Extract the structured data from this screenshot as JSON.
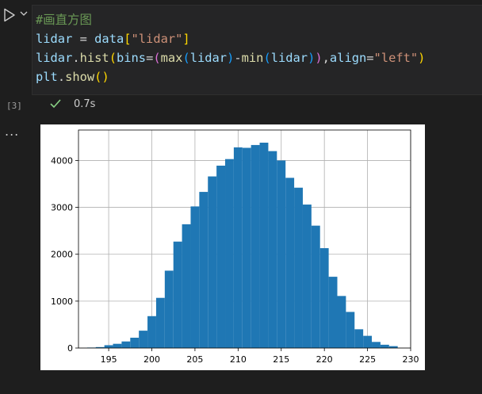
{
  "cell": {
    "code_lines": [
      [
        {
          "t": "#画直方图",
          "c": "comment"
        }
      ],
      [
        {
          "t": "lidar",
          "c": "var"
        },
        {
          "t": " = ",
          "c": ""
        },
        {
          "t": "data",
          "c": "var"
        },
        {
          "t": "[",
          "c": "br1"
        },
        {
          "t": "\"lidar\"",
          "c": "str"
        },
        {
          "t": "]",
          "c": "br1"
        }
      ],
      [
        {
          "t": "lidar",
          "c": "var"
        },
        {
          "t": ".",
          "c": ""
        },
        {
          "t": "hist",
          "c": "fn"
        },
        {
          "t": "(",
          "c": "br1"
        },
        {
          "t": "bins",
          "c": "var"
        },
        {
          "t": "=",
          "c": ""
        },
        {
          "t": "(",
          "c": "br2"
        },
        {
          "t": "max",
          "c": "fn"
        },
        {
          "t": "(",
          "c": "br3"
        },
        {
          "t": "lidar",
          "c": "var"
        },
        {
          "t": ")",
          "c": "br3"
        },
        {
          "t": "-",
          "c": ""
        },
        {
          "t": "min",
          "c": "fn"
        },
        {
          "t": "(",
          "c": "br3"
        },
        {
          "t": "lidar",
          "c": "var"
        },
        {
          "t": ")",
          "c": "br3"
        },
        {
          "t": ")",
          "c": "br2"
        },
        {
          "t": ",",
          "c": ""
        },
        {
          "t": "align",
          "c": "var"
        },
        {
          "t": "=",
          "c": ""
        },
        {
          "t": "\"left\"",
          "c": "str"
        },
        {
          "t": ")",
          "c": "br1"
        }
      ],
      [
        {
          "t": "plt",
          "c": "var"
        },
        {
          "t": ".",
          "c": ""
        },
        {
          "t": "show",
          "c": "fn"
        },
        {
          "t": "(",
          "c": "br1"
        },
        {
          "t": ")",
          "c": "br1"
        }
      ]
    ],
    "execution_count": "[3]",
    "duration": "0.7s",
    "more_label": "..."
  },
  "colors": {
    "bar": "#1f77b4",
    "grid": "#b0b0b0",
    "success": "#89d185"
  },
  "icons": {
    "run": "run-icon",
    "expand": "chevron-down-icon",
    "status": "check-icon"
  },
  "chart_data": {
    "type": "bar",
    "title": "",
    "xlabel": "",
    "ylabel": "",
    "xlim": [
      191.5,
      230
    ],
    "ylim": [
      0,
      4650
    ],
    "xticks": [
      195,
      200,
      205,
      210,
      215,
      220,
      225,
      230
    ],
    "yticks": [
      0,
      1000,
      2000,
      3000,
      4000
    ],
    "grid": true,
    "bin_width": 1,
    "bin_left_edges": [
      193,
      194,
      195,
      196,
      197,
      198,
      199,
      200,
      201,
      202,
      203,
      204,
      205,
      206,
      207,
      208,
      209,
      210,
      211,
      212,
      213,
      214,
      215,
      216,
      217,
      218,
      219,
      220,
      221,
      222,
      223,
      224,
      225,
      226,
      227,
      228
    ],
    "values": [
      10,
      20,
      60,
      90,
      140,
      220,
      370,
      680,
      1070,
      1650,
      2270,
      2640,
      3020,
      3330,
      3660,
      3890,
      4030,
      4280,
      4270,
      4330,
      4380,
      4200,
      4000,
      3630,
      3420,
      3060,
      2610,
      2130,
      1520,
      1110,
      770,
      400,
      260,
      130,
      70,
      40
    ]
  }
}
